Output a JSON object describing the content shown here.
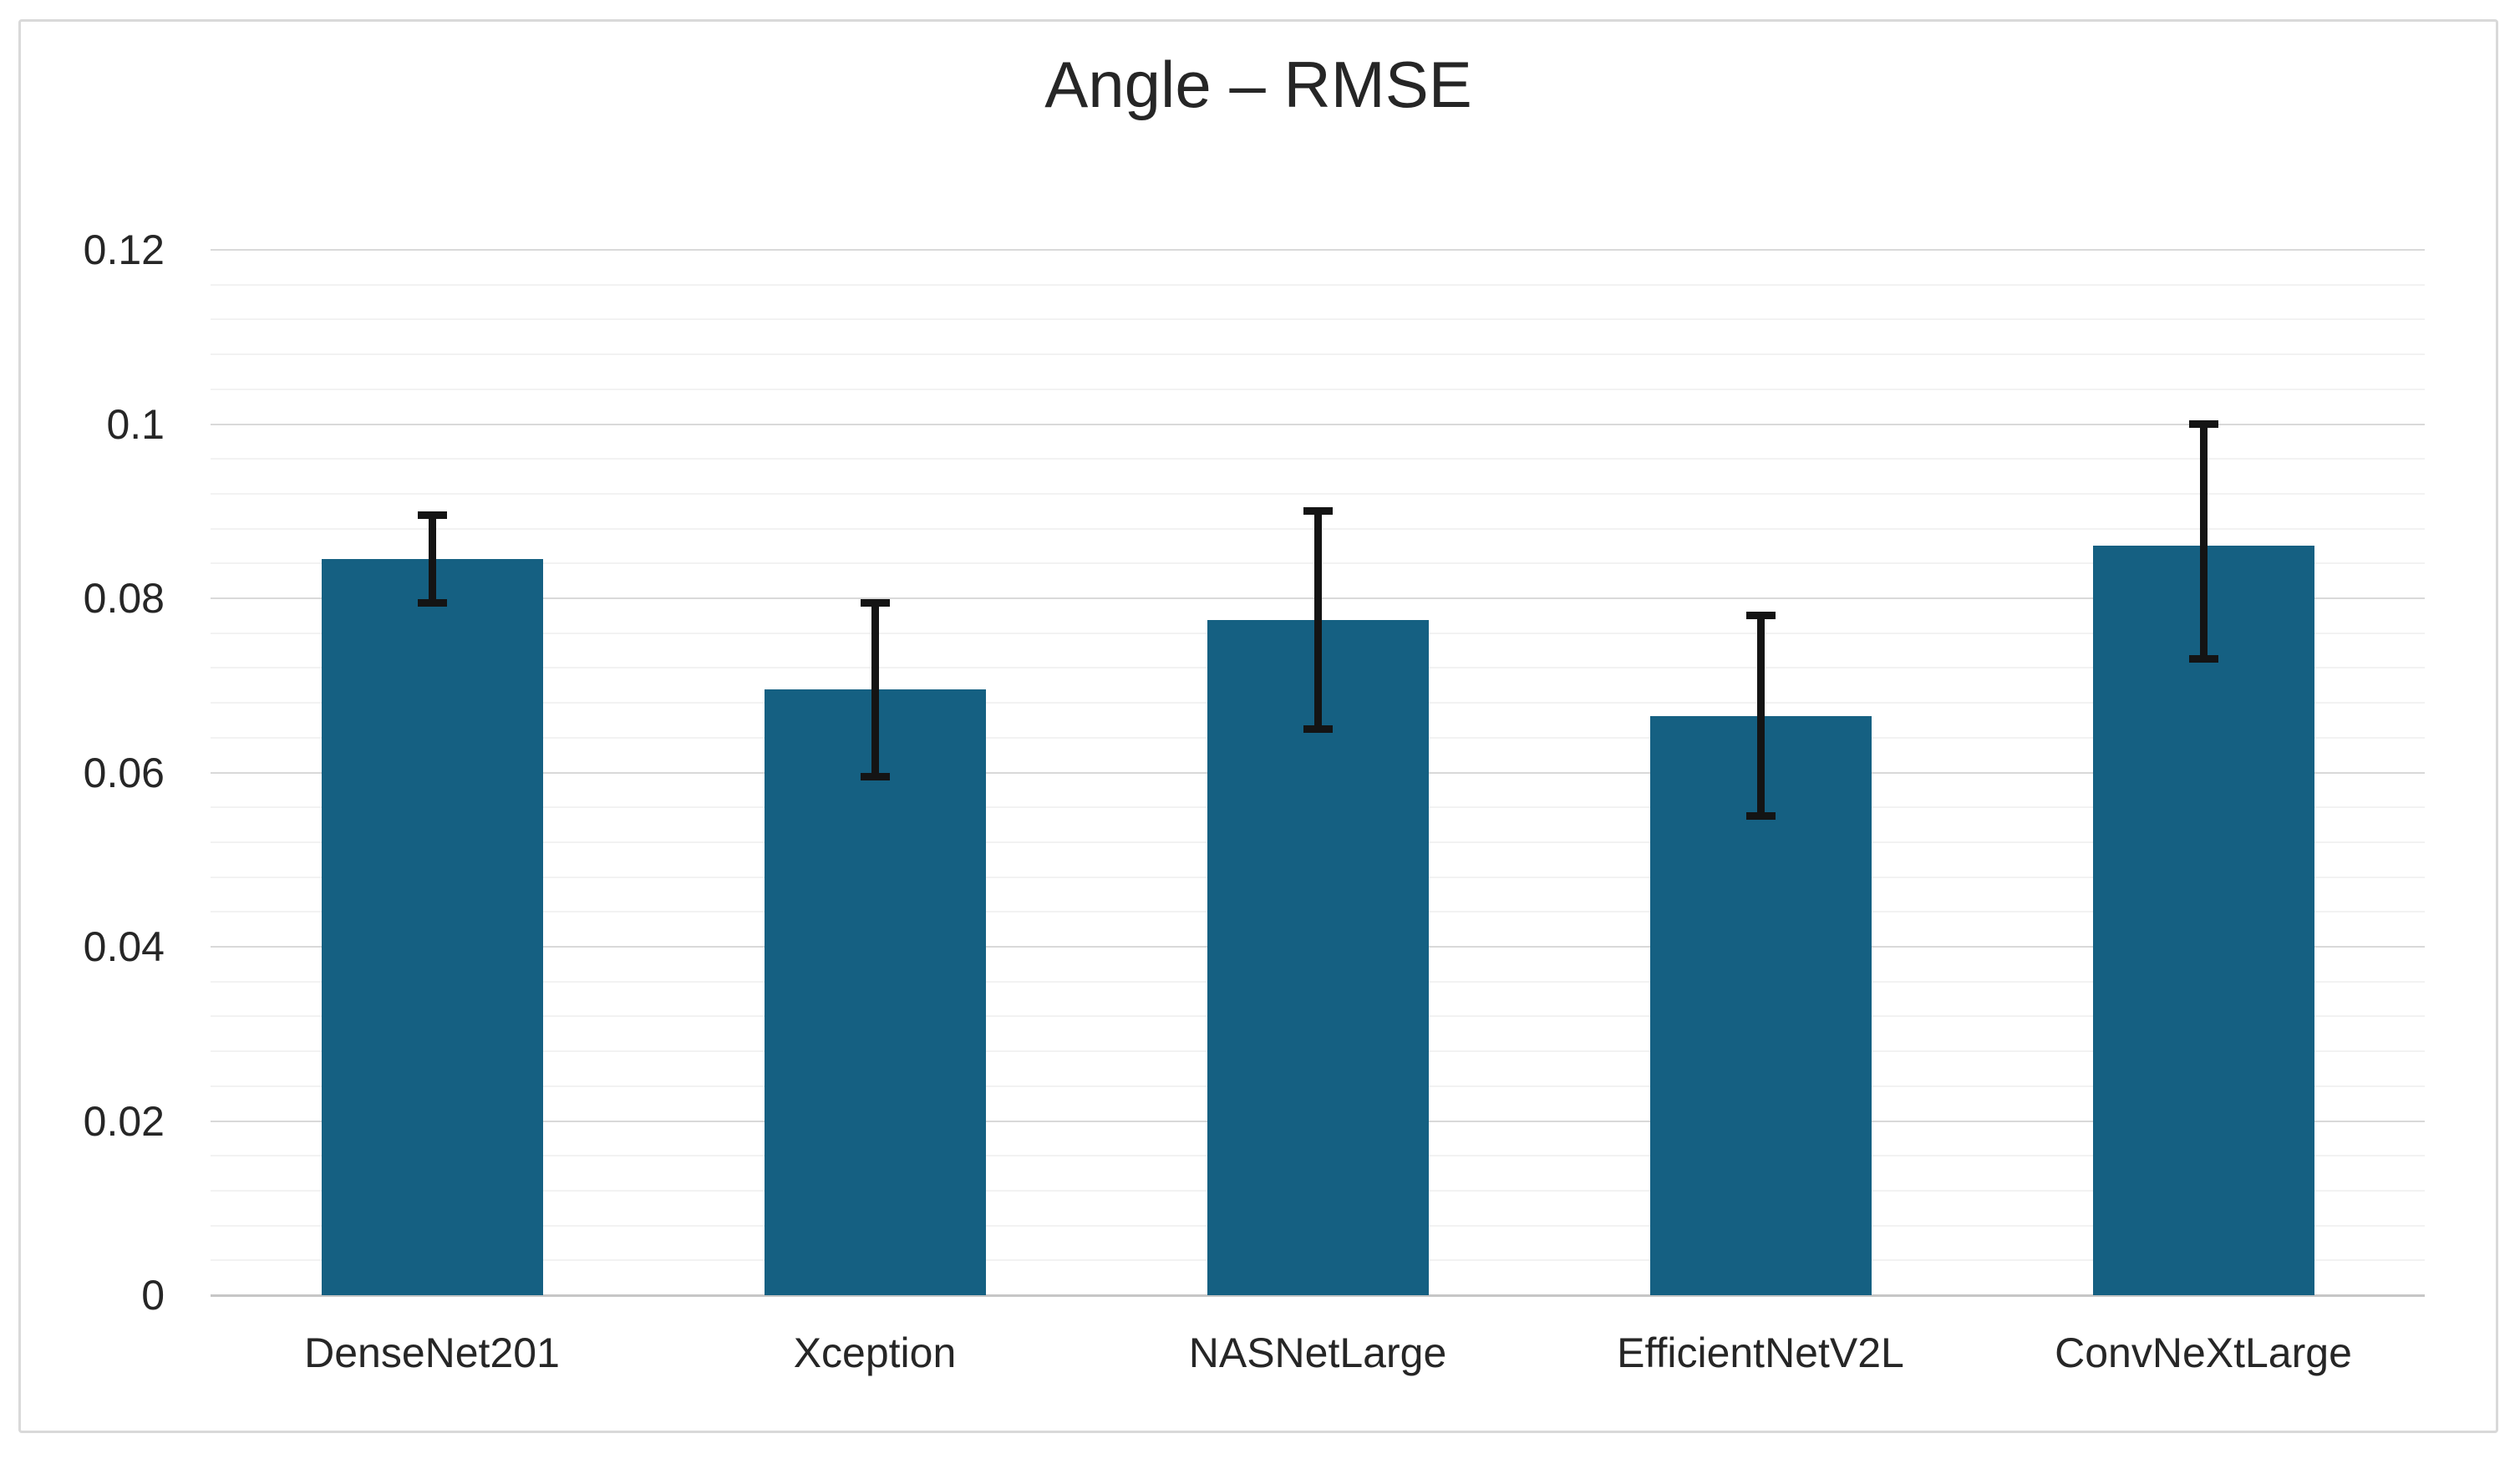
{
  "chart_data": {
    "type": "bar",
    "title": "Angle – RMSE",
    "categories": [
      "DenseNet201",
      "Xception",
      "NASNetLarge",
      "EfficientNetV2L",
      "ConvNeXtLarge"
    ],
    "series": [
      {
        "name": "Angle RMSE",
        "values": [
          0.0845,
          0.0695,
          0.0775,
          0.0665,
          0.086
        ],
        "error_low": [
          0.0795,
          0.0595,
          0.065,
          0.055,
          0.073
        ],
        "error_high": [
          0.0895,
          0.0795,
          0.09,
          0.078,
          0.1
        ]
      }
    ],
    "xlabel": "",
    "ylabel": "",
    "ylim": [
      0,
      0.12
    ],
    "y_major_unit": 0.02,
    "y_minor_unit": 0.004,
    "y_ticks": [
      {
        "value": 0.12,
        "label": "0.12"
      },
      {
        "value": 0.1,
        "label": "0.1"
      },
      {
        "value": 0.08,
        "label": "0.08"
      },
      {
        "value": 0.06,
        "label": "0.06"
      },
      {
        "value": 0.04,
        "label": "0.04"
      },
      {
        "value": 0.02,
        "label": "0.02"
      },
      {
        "value": 0,
        "label": "0"
      }
    ],
    "legend": "none",
    "grid": {
      "horizontal_major": true,
      "horizontal_minor": true,
      "vertical": false
    },
    "colors": {
      "bar": "#156082",
      "error_bar": "#141414",
      "major_gridline": "#d9d9d9",
      "minor_gridline": "#f2f2f2",
      "axis_baseline": "#c6c6c6",
      "figure_border": "#d9d9d9",
      "text": "#262626"
    }
  }
}
